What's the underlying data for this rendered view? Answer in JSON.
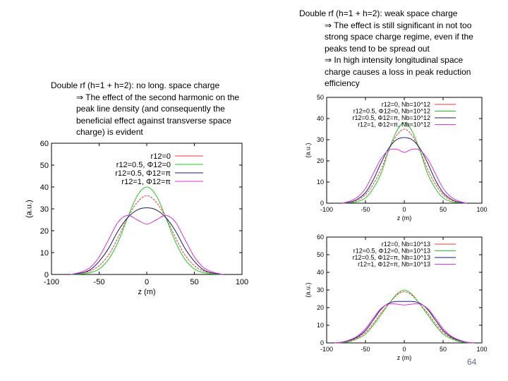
{
  "left_text": {
    "heading": "Double rf (h=1 + h=2): no long. space charge",
    "bullet": "⇒ The effect of the second harmonic on the peak line density (and consequently the beneficial effect against transverse space charge) is evident"
  },
  "right_text": {
    "heading": "Double rf (h=1 + h=2): weak space charge",
    "bullet1": "⇒ The effect is still significant in not too strong space charge regime, even if the peaks tend to be spread out",
    "bullet2": "⇒ In high intensity longitudinal space charge causes a loss in peak reduction efficiency"
  },
  "page_number": "64",
  "colors": {
    "red": "#ff3030",
    "green": "#22cc22",
    "blue": "#1a1a6e",
    "magenta": "#e030e0"
  },
  "chart_data": [
    {
      "type": "line",
      "xlabel": "z (m)",
      "ylabel": "(a.u.)",
      "xlim": [
        -100,
        100
      ],
      "ylim": [
        0,
        60
      ],
      "xticks": [
        -100,
        -50,
        0,
        50,
        100
      ],
      "yticks": [
        0,
        10,
        20,
        30,
        40,
        50,
        60
      ],
      "legend_position": "top-right",
      "x": [
        -80,
        -70,
        -60,
        -50,
        -40,
        -30,
        -20,
        -10,
        0,
        10,
        20,
        30,
        40,
        50,
        60,
        70,
        80
      ],
      "series": [
        {
          "name": "r12=0",
          "color": "#ff3030",
          "values": [
            0,
            0.5,
            1.5,
            4,
            9,
            17,
            26,
            33,
            36,
            33,
            26,
            17,
            9,
            4,
            1.5,
            0.5,
            0
          ]
        },
        {
          "name": "r12=0.5, Φ12=0",
          "color": "#22cc22",
          "values": [
            0,
            0.2,
            0.8,
            2.5,
            7,
            15,
            26,
            36,
            40,
            36,
            26,
            15,
            7,
            2.5,
            0.8,
            0.2,
            0
          ]
        },
        {
          "name": "r12=0.5, Φ12=π",
          "color": "#1a1a6e",
          "values": [
            0,
            0.6,
            2,
            6,
            12,
            20,
            26,
            29.5,
            30.5,
            29.5,
            26,
            20,
            12,
            6,
            2,
            0.6,
            0
          ]
        },
        {
          "name": "r12=1, Φ12=π",
          "color": "#e030e0",
          "values": [
            0,
            1,
            3,
            8,
            16,
            24,
            27,
            25,
            23,
            25,
            27,
            24,
            16,
            8,
            3,
            1,
            0
          ]
        }
      ]
    },
    {
      "type": "line",
      "xlabel": "z (m)",
      "ylabel": "(a.u.)",
      "xlim": [
        -100,
        100
      ],
      "ylim": [
        0,
        50
      ],
      "xticks": [
        -100,
        -50,
        0,
        50,
        100
      ],
      "yticks": [
        0,
        10,
        20,
        30,
        40,
        50
      ],
      "legend_position": "top-right",
      "x": [
        -80,
        -70,
        -60,
        -50,
        -40,
        -30,
        -20,
        -10,
        0,
        10,
        20,
        30,
        40,
        50,
        60,
        70,
        80
      ],
      "series": [
        {
          "name": "r12=0, Nb=10^12",
          "color": "#ff3030",
          "values": [
            0,
            0.5,
            1.5,
            4,
            9,
            16,
            25,
            32,
            35,
            32,
            25,
            16,
            9,
            4,
            1.5,
            0.5,
            0
          ]
        },
        {
          "name": "r12=0.5, Φ12=0, Nb=10^12",
          "color": "#22cc22",
          "values": [
            0,
            0.2,
            0.8,
            2.5,
            7,
            14,
            25,
            34,
            38,
            34,
            25,
            14,
            7,
            2.5,
            0.8,
            0.2,
            0
          ]
        },
        {
          "name": "r12=0.5, Φ12=π, Nb=10^12",
          "color": "#1a1a6e",
          "values": [
            0,
            0.5,
            2,
            5,
            11,
            19,
            26,
            30,
            31,
            30,
            26,
            19,
            11,
            5,
            2,
            0.5,
            0
          ]
        },
        {
          "name": "r12=1, Φ12=π, Nb=10^12",
          "color": "#e030e0",
          "values": [
            0,
            1,
            3,
            7,
            14,
            21,
            25,
            25.5,
            24,
            25.5,
            25,
            21,
            14,
            7,
            3,
            1,
            0
          ]
        }
      ]
    },
    {
      "type": "line",
      "xlabel": "z (m)",
      "ylabel": "(a.u.)",
      "xlim": [
        -100,
        100
      ],
      "ylim": [
        0,
        60
      ],
      "xticks": [
        -100,
        -50,
        0,
        50,
        100
      ],
      "yticks": [
        0,
        10,
        20,
        30,
        40,
        50,
        60
      ],
      "legend_position": "top-right",
      "x": [
        -90,
        -80,
        -70,
        -60,
        -50,
        -40,
        -30,
        -20,
        -10,
        0,
        10,
        20,
        30,
        40,
        50,
        60,
        70,
        80,
        90
      ],
      "series": [
        {
          "name": "r12=0, Nb=10^13",
          "color": "#ff3030",
          "values": [
            0,
            0.3,
            1,
            3,
            6,
            11,
            17,
            22,
            27,
            29,
            27,
            22,
            17,
            11,
            6,
            3,
            1,
            0.3,
            0
          ]
        },
        {
          "name": "r12=0.5, Φ12=0, Nb=10^13",
          "color": "#22cc22",
          "values": [
            0,
            0.2,
            0.8,
            2.5,
            5,
            10,
            16,
            22,
            27.5,
            30,
            27.5,
            22,
            16,
            10,
            5,
            2.5,
            0.8,
            0.2,
            0
          ]
        },
        {
          "name": "r12=0.5, Φ12=π, Nb=10^13",
          "color": "#1a1a6e",
          "values": [
            0,
            0.4,
            1.5,
            3.5,
            7,
            13,
            19,
            22.5,
            23.5,
            23.5,
            23.5,
            22.5,
            19,
            13,
            7,
            3.5,
            1.5,
            0.4,
            0
          ]
        },
        {
          "name": "r12=1, Φ12=π, Nb=10^13",
          "color": "#e030e0",
          "values": [
            0,
            0.5,
            1.8,
            4,
            8,
            14,
            19.5,
            22,
            22,
            21.5,
            22,
            22,
            19.5,
            14,
            8,
            4,
            1.8,
            0.5,
            0
          ]
        }
      ]
    }
  ]
}
